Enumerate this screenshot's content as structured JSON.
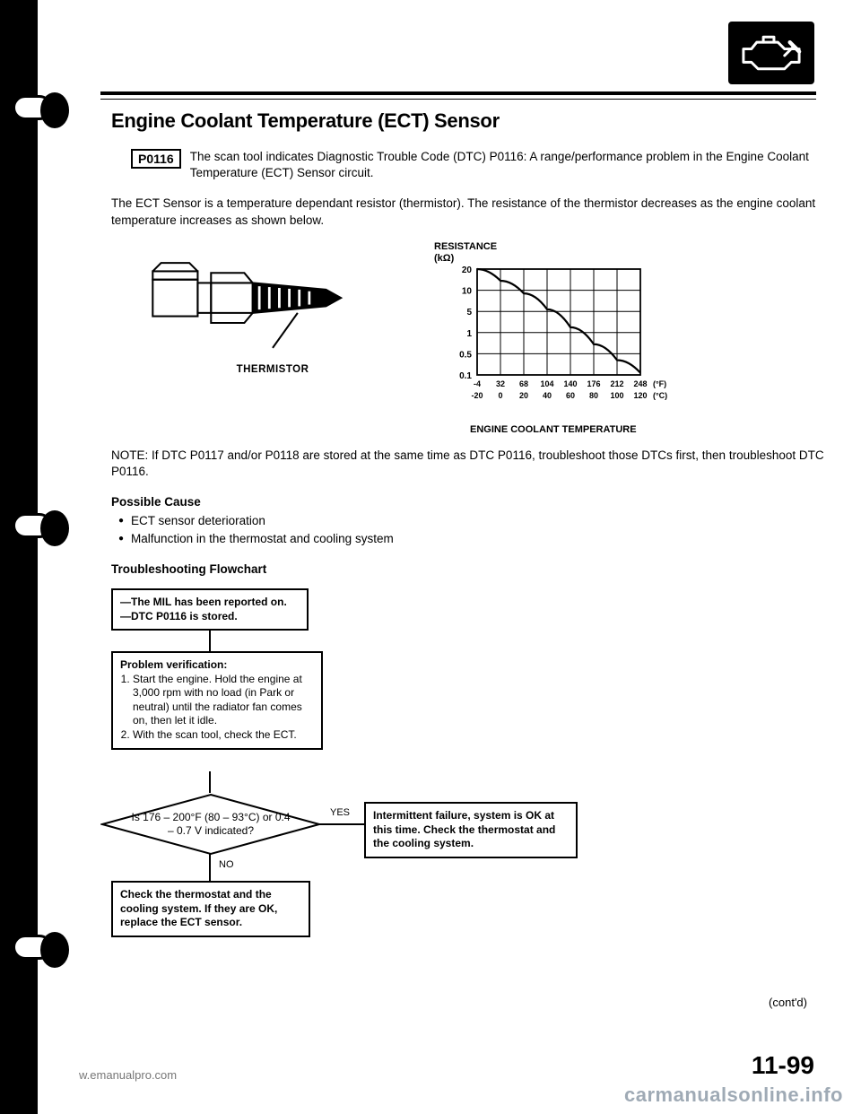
{
  "header": {
    "title": "Engine Coolant Temperature (ECT) Sensor"
  },
  "dtc": {
    "code": "P0116",
    "description": "The scan tool indicates Diagnostic Trouble Code (DTC) P0116: A range/performance problem in the Engine Coolant Temperature (ECT) Sensor circuit."
  },
  "intro": "The ECT Sensor is a temperature dependant resistor (thermistor). The resistance of the thermistor decreases as the engine coolant temperature increases as shown below.",
  "figure": {
    "thermistor_label": "THERMISTOR",
    "chart": {
      "type": "line",
      "y_title": "RESISTANCE",
      "y_unit": "(kΩ)",
      "y_ticks": [
        "20",
        "10",
        "5",
        "1",
        "0.5",
        "0.1"
      ],
      "x_ticks_f": [
        "-4",
        "32",
        "68",
        "104",
        "140",
        "176",
        "212",
        "248"
      ],
      "x_unit_f": "(°F)",
      "x_ticks_c": [
        "-20",
        "0",
        "20",
        "40",
        "60",
        "80",
        "100",
        "120"
      ],
      "x_unit_c": "(°C)",
      "x_label": "ENGINE COOLANT TEMPERATURE",
      "curve_points": [
        [
          0,
          0
        ],
        [
          1,
          0.55
        ],
        [
          2,
          1.15
        ],
        [
          3,
          1.9
        ],
        [
          4,
          2.75
        ],
        [
          5,
          3.55
        ],
        [
          6,
          4.3
        ],
        [
          7,
          4.9
        ]
      ],
      "line_color": "#000000",
      "grid_color": "#000000",
      "background_color": "#ffffff",
      "line_width": 2.2
    }
  },
  "note": "NOTE: If DTC P0117 and/or P0118 are stored at the same time as DTC P0116, troubleshoot those DTCs first, then troubleshoot DTC P0116.",
  "possible_cause": {
    "heading": "Possible Cause",
    "items": [
      "ECT sensor deterioration",
      "Malfunction in the thermostat and cooling system"
    ]
  },
  "flowchart_heading": "Troubleshooting Flowchart",
  "flow": {
    "start": {
      "line1": "The MIL has been reported on.",
      "line2": "DTC P0116 is stored."
    },
    "verify": {
      "title": "Problem verification:",
      "step1": "Start the engine. Hold the engine at 3,000 rpm with no load (in Park or neutral) until the radiator fan comes on, then let it idle.",
      "step2": "With the scan tool, check the ECT."
    },
    "decision": "Is 176 – 200°F (80 – 93°C) or 0.4 – 0.7 V indicated?",
    "yes_label": "YES",
    "no_label": "NO",
    "yes_result": "Intermittent failure, system is OK at this time. Check the thermostat and the cooling system.",
    "no_result": "Check the thermostat and the cooling system. If they are OK, replace the ECT sensor."
  },
  "contd": "(cont'd)",
  "page_number": "11-99",
  "watermark_left": "w.emanualpro.com",
  "watermark_right": "carmanualsonline.info",
  "colors": {
    "text": "#000000",
    "bg": "#ffffff",
    "watermark": "#8899a8"
  }
}
